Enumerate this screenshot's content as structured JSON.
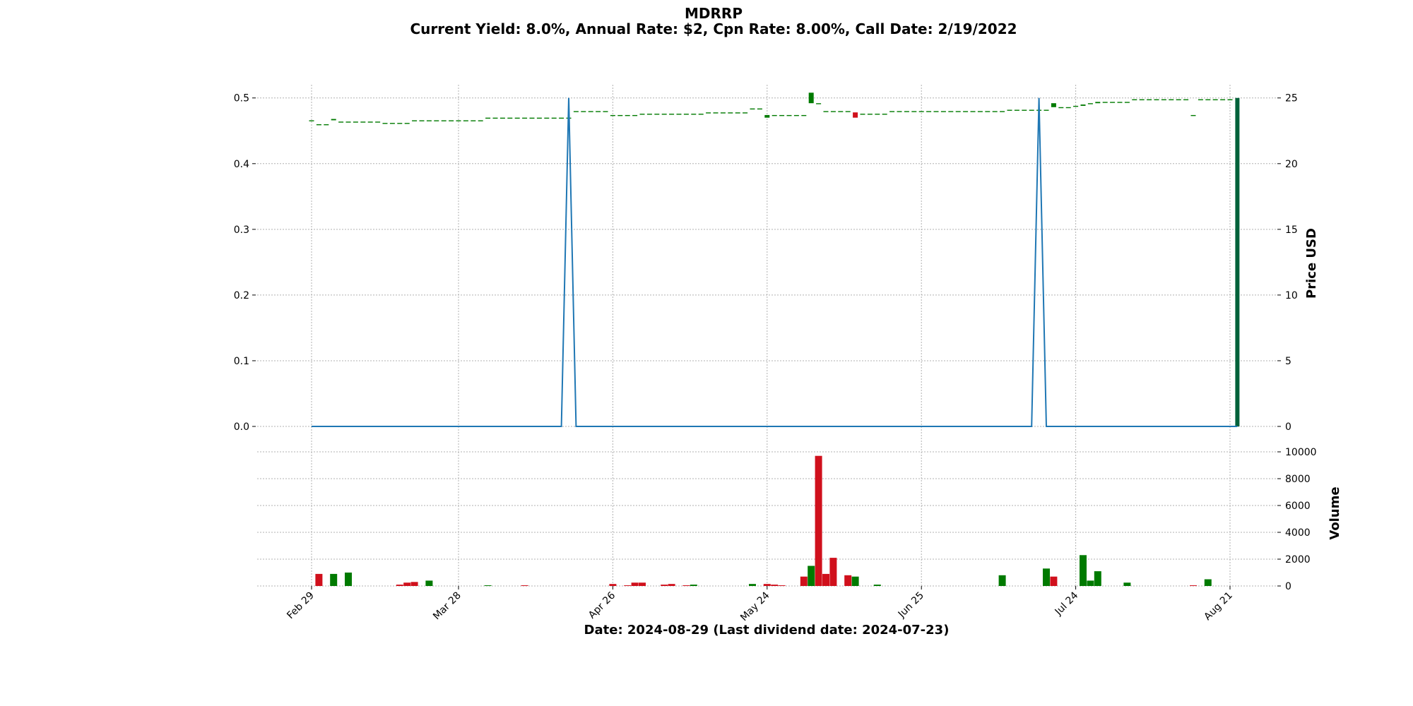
{
  "chart_data": {
    "type": "candlestick",
    "title": "MDRRP",
    "subtitle": "Current Yield: 8.0%, Annual Rate: $2, Cpn Rate: 8.00%, Call Date: 2/19/2022",
    "xlabel": "Date: 2024-08-29   (Last dividend date: 2024-07-23)",
    "x_ticks": [
      "Feb 29",
      "Mar 28",
      "Apr 26",
      "May 24",
      "Jun 25",
      "Jul 24",
      "Aug 21"
    ],
    "price_axis": {
      "label": "Price USD",
      "ylim": [
        0,
        25.9
      ],
      "ticks": [
        0,
        5,
        10,
        15,
        20,
        25
      ]
    },
    "dividend_axis": {
      "ylim": [
        0,
        0.518
      ],
      "ticks": [
        "0.0",
        "0.1",
        "0.2",
        "0.3",
        "0.4",
        "0.5"
      ]
    },
    "volume_axis": {
      "label": "Volume",
      "ylim": [
        0,
        10000
      ],
      "ticks": [
        0,
        2000,
        4000,
        6000,
        8000,
        10000
      ]
    },
    "grid": true,
    "colors": {
      "up": "#007a00",
      "down": "#d0101c",
      "dividend_line": "#1f77b4",
      "last_bar": "#00613a",
      "grid": "#b0b0b0"
    },
    "series": [
      {
        "name": "Price",
        "date_index": [
          0,
          1,
          2,
          3,
          4,
          5,
          6,
          7,
          8,
          9,
          10,
          11,
          12,
          13,
          14,
          15,
          16,
          17,
          18,
          19,
          20,
          21,
          22,
          23,
          24,
          25,
          26,
          27,
          28,
          29,
          30,
          31,
          32,
          33,
          34,
          35,
          36,
          37,
          38,
          39,
          40,
          41,
          42,
          43,
          44,
          45,
          46,
          47,
          48,
          49,
          50,
          51,
          52,
          53,
          54,
          55,
          56,
          57,
          58,
          59,
          60,
          61,
          62,
          63,
          64,
          65,
          66,
          67,
          68,
          69,
          70,
          71,
          72,
          73,
          74,
          75,
          76,
          77,
          78,
          79,
          80,
          81,
          82,
          83,
          84,
          85,
          86,
          87,
          88,
          89,
          90,
          91,
          92,
          93,
          94,
          95,
          96,
          97,
          98,
          99,
          100,
          101,
          102,
          103,
          104,
          105,
          106,
          107,
          108,
          109,
          110,
          111,
          112,
          113,
          114,
          115,
          116,
          117,
          118,
          119,
          120,
          121,
          122,
          123,
          124,
          125,
          126
        ],
        "open": [
          23.3,
          23.0,
          23.0,
          23.3,
          23.2,
          23.2,
          23.2,
          23.2,
          23.2,
          23.2,
          23.1,
          23.1,
          23.1,
          23.1,
          23.3,
          23.3,
          23.3,
          23.3,
          23.3,
          23.3,
          23.3,
          23.3,
          23.3,
          23.3,
          23.5,
          23.5,
          23.5,
          23.5,
          23.5,
          23.5,
          23.5,
          23.5,
          23.5,
          23.5,
          23.5,
          23.5,
          24.0,
          24.0,
          24.0,
          24.0,
          24.0,
          23.7,
          23.7,
          23.7,
          23.7,
          23.8,
          23.8,
          23.8,
          23.8,
          23.8,
          23.8,
          23.8,
          23.8,
          23.8,
          23.9,
          23.9,
          23.9,
          23.9,
          23.9,
          23.9,
          24.2,
          24.2,
          23.5,
          23.7,
          23.7,
          23.7,
          23.7,
          23.7,
          24.6,
          24.6,
          24.0,
          24.0,
          24.0,
          24.0,
          23.9,
          23.8,
          23.8,
          23.8,
          23.8,
          24.0,
          24.0,
          24.0,
          24.0,
          24.0,
          24.0,
          24.0,
          24.0,
          24.0,
          24.0,
          24.0,
          24.0,
          24.0,
          24.0,
          24.0,
          24.0,
          24.1,
          24.1,
          24.1,
          24.1,
          24.1,
          24.1,
          24.3,
          24.3,
          24.3,
          24.4,
          24.4,
          24.6,
          24.6,
          24.7,
          24.7,
          24.7,
          24.7,
          24.9,
          24.9,
          24.9,
          24.9,
          24.9,
          24.9,
          24.9,
          24.9,
          23.7,
          24.9,
          24.9,
          24.9,
          24.9,
          24.9,
          0.0
        ],
        "close": [
          23.3,
          23.0,
          23.0,
          23.4,
          23.2,
          23.2,
          23.2,
          23.2,
          23.2,
          23.2,
          23.1,
          23.1,
          23.1,
          23.1,
          23.3,
          23.3,
          23.3,
          23.3,
          23.3,
          23.3,
          23.3,
          23.3,
          23.3,
          23.3,
          23.5,
          23.5,
          23.5,
          23.5,
          23.5,
          23.5,
          23.5,
          23.5,
          23.5,
          23.5,
          23.5,
          23.5,
          24.0,
          24.0,
          24.0,
          24.0,
          24.0,
          23.7,
          23.7,
          23.7,
          23.7,
          23.8,
          23.8,
          23.8,
          23.8,
          23.8,
          23.8,
          23.8,
          23.8,
          23.8,
          23.9,
          23.9,
          23.9,
          23.9,
          23.9,
          23.9,
          24.2,
          24.2,
          23.7,
          23.7,
          23.7,
          23.7,
          23.7,
          23.7,
          25.4,
          24.6,
          24.0,
          24.0,
          24.0,
          24.0,
          23.5,
          23.8,
          23.8,
          23.8,
          23.8,
          24.0,
          24.0,
          24.0,
          24.0,
          24.0,
          24.0,
          24.0,
          24.0,
          24.0,
          24.0,
          24.0,
          24.0,
          24.0,
          24.0,
          24.0,
          24.0,
          24.1,
          24.1,
          24.1,
          24.1,
          24.1,
          24.1,
          24.6,
          24.3,
          24.3,
          24.4,
          24.5,
          24.6,
          24.7,
          24.7,
          24.7,
          24.7,
          24.7,
          24.9,
          24.9,
          24.9,
          24.9,
          24.9,
          24.9,
          24.9,
          24.9,
          23.7,
          24.9,
          24.9,
          24.9,
          24.9,
          24.9,
          25.0
        ]
      },
      {
        "name": "Volume",
        "values": [
          0,
          900,
          0,
          900,
          0,
          1000,
          0,
          0,
          0,
          0,
          0,
          0,
          100,
          250,
          300,
          0,
          400,
          0,
          0,
          0,
          0,
          0,
          0,
          0,
          50,
          0,
          0,
          0,
          0,
          50,
          0,
          0,
          0,
          0,
          0,
          0,
          0,
          0,
          0,
          0,
          0,
          150,
          0,
          50,
          250,
          250,
          0,
          0,
          100,
          150,
          0,
          50,
          100,
          0,
          0,
          0,
          0,
          0,
          0,
          0,
          150,
          0,
          150,
          100,
          50,
          0,
          0,
          700,
          1500,
          9700,
          900,
          2100,
          0,
          800,
          700,
          0,
          0,
          100,
          0,
          0,
          0,
          0,
          0,
          0,
          0,
          0,
          0,
          0,
          0,
          0,
          0,
          0,
          0,
          0,
          800,
          0,
          0,
          0,
          0,
          0,
          1300,
          700,
          0,
          0,
          0,
          2300,
          400,
          1100,
          0,
          0,
          0,
          250,
          0,
          0,
          0,
          0,
          0,
          0,
          0,
          0,
          50,
          0,
          500,
          0,
          0,
          0
        ],
        "up": [
          false,
          false,
          false,
          true,
          false,
          true,
          false,
          false,
          false,
          false,
          false,
          false,
          false,
          false,
          false,
          false,
          true,
          false,
          false,
          false,
          false,
          false,
          false,
          false,
          true,
          false,
          false,
          false,
          false,
          false,
          false,
          false,
          false,
          false,
          false,
          false,
          false,
          false,
          false,
          false,
          false,
          false,
          false,
          false,
          false,
          false,
          false,
          false,
          false,
          false,
          false,
          false,
          true,
          false,
          false,
          false,
          false,
          false,
          false,
          false,
          true,
          false,
          false,
          false,
          false,
          false,
          false,
          false,
          true,
          false,
          false,
          false,
          false,
          false,
          true,
          false,
          false,
          true,
          false,
          false,
          false,
          false,
          false,
          false,
          false,
          false,
          false,
          false,
          false,
          false,
          false,
          false,
          false,
          false,
          true,
          false,
          false,
          false,
          false,
          false,
          true,
          false,
          false,
          false,
          false,
          true,
          true,
          true,
          false,
          false,
          false,
          true,
          false,
          false,
          false,
          false,
          false,
          false,
          false,
          false,
          false,
          false,
          true,
          false,
          false,
          false
        ]
      },
      {
        "name": "Dividend",
        "values_nonzero": [
          {
            "date_index": 35,
            "value": 0.5
          },
          {
            "date_index": 99,
            "value": 0.5
          }
        ]
      }
    ]
  }
}
